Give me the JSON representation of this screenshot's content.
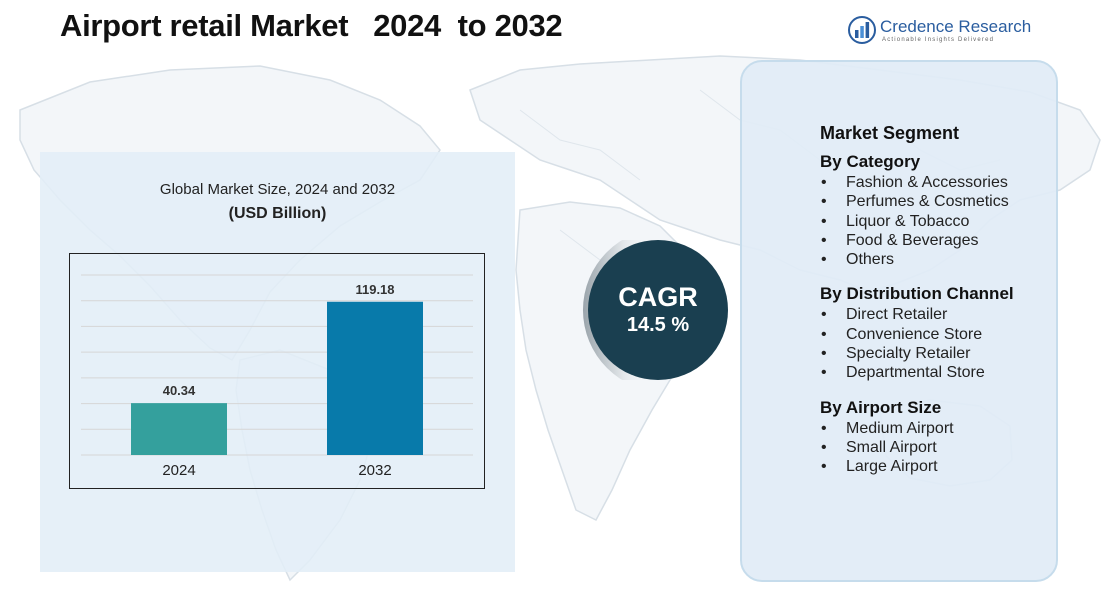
{
  "title": "Airport retail Market   2024  to 2032",
  "logo": {
    "name": "Credence Research",
    "tagline": "Actionable Insights Delivered",
    "icon": "bar-chart-logo-icon"
  },
  "chart_panel": {
    "title": "Global Market Size, 2024 and 2032",
    "subtitle": "(USD Billion)"
  },
  "chart_data": {
    "type": "bar",
    "categories": [
      "2024",
      "2032"
    ],
    "values": [
      40.34,
      119.18
    ],
    "data_labels": [
      "40.34",
      "119.18"
    ],
    "colors": [
      "#34a09d",
      "#087aaa"
    ],
    "title": "Global Market Size, 2024 and 2032",
    "subtitle": "(USD Billion)",
    "xlabel": "",
    "ylabel": "",
    "ylim": [
      0,
      140
    ],
    "grid": true,
    "legend": "none"
  },
  "cagr": {
    "label": "CAGR",
    "value": "14.5 %"
  },
  "segments": {
    "title": "Market Segment",
    "groups": [
      {
        "title": "By Category",
        "items": [
          "Fashion & Accessories",
          "Perfumes & Cosmetics",
          "Liquor & Tobacco",
          "Food & Beverages",
          "Others"
        ]
      },
      {
        "title": "By Distribution Channel",
        "items": [
          "Direct Retailer",
          "Convenience Store",
          "Specialty Retailer",
          "Departmental Store"
        ]
      },
      {
        "title": "By Airport Size",
        "items": [
          "Medium Airport",
          "Small Airport",
          "Large Airport"
        ]
      }
    ]
  },
  "colors": {
    "cagr_circle": "#1a3f50",
    "panel_fill": "#e3eef7",
    "logo_blue": "#2a5d9f"
  }
}
